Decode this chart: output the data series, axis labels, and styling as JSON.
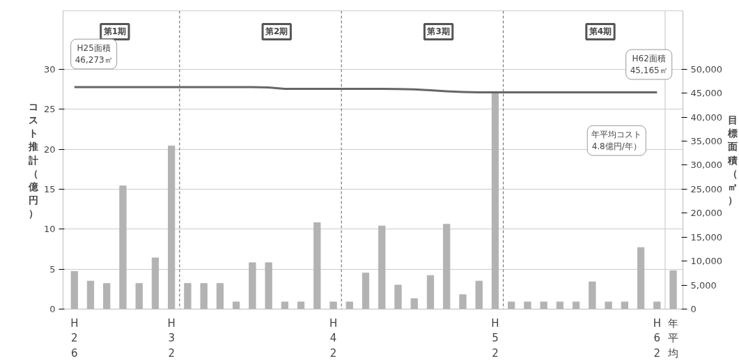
{
  "chart_data": {
    "type": "bar",
    "ylabel": "コスト推計（億円）",
    "y2label": "目標面積（㎡）",
    "categories": [
      "H26",
      null,
      null,
      null,
      null,
      null,
      "H32",
      null,
      null,
      null,
      null,
      null,
      null,
      null,
      null,
      null,
      "H42",
      null,
      null,
      null,
      null,
      null,
      null,
      null,
      null,
      null,
      "H52",
      null,
      null,
      null,
      null,
      null,
      null,
      null,
      null,
      null,
      "H62",
      "年平均"
    ],
    "series": [
      {
        "color": "#b3b3b3",
        "values": [
          4.7,
          3.5,
          3.2,
          15.4,
          3.2,
          6.4,
          20.4,
          3.2,
          3.2,
          3.2,
          0.9,
          5.8,
          5.8,
          0.9,
          0.9,
          10.8,
          0.9,
          0.9,
          4.5,
          10.4,
          3.0,
          1.3,
          4.2,
          10.6,
          1.8,
          3.5,
          27.0,
          0.9,
          0.9,
          0.9,
          0.9,
          0.9,
          3.4,
          0.9,
          0.9,
          7.7,
          0.9,
          4.8
        ]
      },
      {
        "type": "line",
        "axis": "y2",
        "color": "#666666",
        "values": [
          46273,
          46273,
          46273,
          46273,
          46273,
          46273,
          46273,
          46273,
          46273,
          46273,
          46273,
          46273,
          46200,
          45900,
          45900,
          45900,
          45900,
          45900,
          45900,
          45900,
          45850,
          45800,
          45600,
          45400,
          45250,
          45165,
          45165,
          45165,
          45165,
          45165,
          45165,
          45165,
          45165,
          45165,
          45165,
          45165,
          45165,
          null
        ]
      }
    ],
    "ylim": [
      0,
      37.3
    ],
    "yticks": [
      0,
      5,
      10,
      15,
      20,
      25,
      30
    ],
    "y2lim": [
      0,
      62167
    ],
    "y2ticks": [
      {
        "value": 0,
        "label": "0"
      },
      {
        "value": 5000,
        "label": "5,000"
      },
      {
        "value": 10000,
        "label": "10,000"
      },
      {
        "value": 15000,
        "label": "15,000"
      },
      {
        "value": 20000,
        "label": "20,000"
      },
      {
        "value": 25000,
        "label": "25,000"
      },
      {
        "value": 30000,
        "label": "30,000"
      },
      {
        "value": 35000,
        "label": "35,000"
      },
      {
        "value": 40000,
        "label": "40,000"
      },
      {
        "value": 45000,
        "label": "45,000"
      },
      {
        "value": 50000,
        "label": "50,000"
      }
    ],
    "grid": "y",
    "annotations": [
      "第1期",
      "第2期",
      "第3期",
      "第4期",
      "H25面積\n46,273㎡",
      "H62面積\n45,165㎡",
      "年平均コスト\n4.8億円/年）"
    ]
  }
}
